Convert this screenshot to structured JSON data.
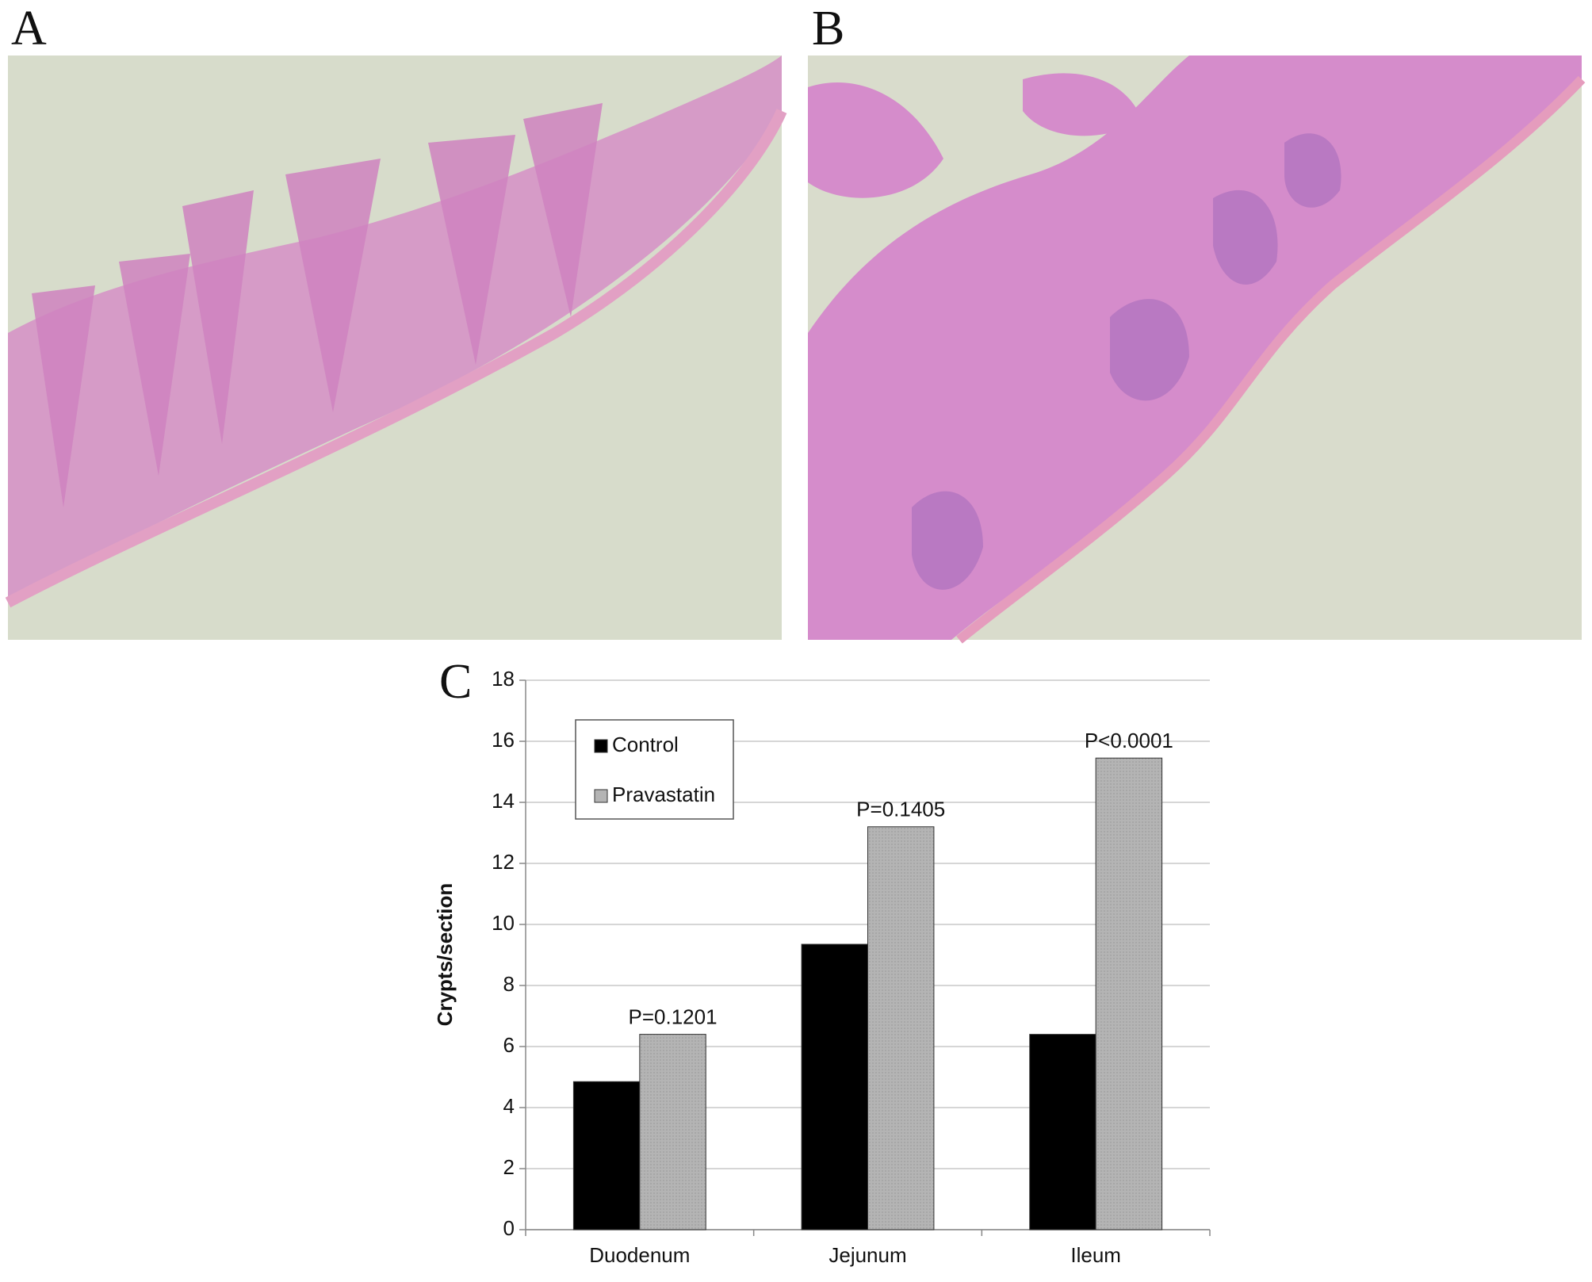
{
  "panel_labels": [
    "A",
    "B"
  ],
  "chart_data": {
    "type": "bar",
    "panel_label": "C",
    "y_label": "Crypts/section",
    "categories": [
      "Duodenum",
      "Jejunum",
      "Ileum"
    ],
    "series": [
      {
        "name": "Control",
        "color": "#000000",
        "values": [
          4.85,
          9.35,
          6.4
        ]
      },
      {
        "name": "Pravastatin",
        "color": "#b4b4b4",
        "values": [
          6.4,
          13.2,
          15.45
        ]
      }
    ],
    "annotations": [
      "P=0.1201",
      "P=0.1405",
      "P<0.0001"
    ],
    "ylim": [
      0,
      18
    ],
    "yticks": [
      0,
      2,
      4,
      6,
      8,
      10,
      12,
      14,
      16,
      18
    ],
    "grid": true,
    "legend": "upper left"
  }
}
